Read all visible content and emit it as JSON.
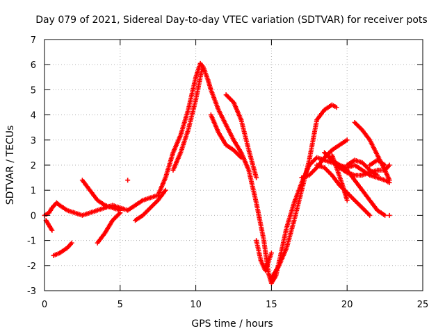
{
  "chart_data": {
    "type": "scatter",
    "title": "Day 079 of 2021, Sidereal Day-to-day VTEC variation (SDTVAR) for receiver pots",
    "xlabel": "GPS time / hours",
    "ylabel": "SDTVAR / TECUs",
    "xlim": [
      0,
      25
    ],
    "ylim": [
      -3,
      7
    ],
    "x_ticks": [
      0,
      5,
      10,
      15,
      20,
      25
    ],
    "x_tick_labels": [
      "0",
      "5",
      "10",
      "15",
      "20",
      "25"
    ],
    "y_ticks": [
      -3,
      -2,
      -1,
      0,
      1,
      2,
      3,
      4,
      5,
      6,
      7
    ],
    "y_tick_labels": [
      "-3",
      "-2",
      "-1",
      "0",
      "1",
      "2",
      "3",
      "4",
      "5",
      "6",
      "7"
    ],
    "grid": true,
    "marker": "+",
    "color": "#ff0000",
    "series": [
      {
        "name": "main",
        "x": [
          0,
          0.3,
          0.5,
          0.8,
          1.0,
          1.5,
          2.0,
          2.5,
          3.0,
          3.5,
          4.0,
          4.5,
          5.0,
          5.5,
          6.0,
          6.5,
          7.0,
          7.5,
          8.0,
          8.5,
          9.0,
          9.5,
          10.0,
          10.3,
          10.5,
          10.8,
          11.0,
          11.5,
          12.0,
          12.5,
          13.0,
          13.5,
          14.0,
          14.5,
          14.8,
          15.0,
          15.3,
          15.6,
          16.0,
          16.5,
          17.0,
          17.5,
          18.0,
          18.5,
          19.0,
          19.5,
          20.0,
          20.5,
          21.0,
          21.5,
          22.0,
          22.5,
          22.8
        ],
        "y": [
          0,
          0.1,
          0.3,
          0.5,
          0.4,
          0.2,
          0.1,
          0.0,
          0.1,
          0.2,
          0.3,
          0.4,
          0.3,
          0.2,
          0.4,
          0.6,
          0.7,
          0.8,
          1.5,
          2.5,
          3.2,
          4.2,
          5.5,
          6.05,
          5.9,
          5.4,
          5.0,
          4.2,
          3.6,
          3.0,
          2.5,
          1.8,
          0.5,
          -1.0,
          -2.3,
          -2.7,
          -2.4,
          -1.6,
          -0.5,
          0.5,
          1.3,
          2.0,
          2.3,
          2.2,
          2.1,
          2.0,
          1.9,
          2.0,
          1.8,
          1.6,
          1.5,
          1.4,
          1.3
        ]
      },
      {
        "name": "s2",
        "x": [
          0.1,
          0.3,
          0.5
        ],
        "y": [
          -0.2,
          -0.4,
          -0.6
        ]
      },
      {
        "name": "s3",
        "x": [
          0.6,
          1.0,
          1.5,
          1.8
        ],
        "y": [
          -1.6,
          -1.5,
          -1.3,
          -1.1
        ]
      },
      {
        "name": "s4",
        "x": [
          2.5,
          3.0,
          3.5,
          4.0,
          4.5,
          5.0
        ],
        "y": [
          1.4,
          1.0,
          0.6,
          0.4,
          0.3,
          0.2
        ]
      },
      {
        "name": "s5",
        "x": [
          3.5,
          4.0,
          4.5,
          5.0
        ],
        "y": [
          -1.1,
          -0.7,
          -0.2,
          0.1
        ]
      },
      {
        "name": "s6",
        "x": [
          5.5
        ],
        "y": [
          1.4
        ]
      },
      {
        "name": "s7",
        "x": [
          6.0,
          6.5,
          7.0,
          7.5,
          8.0
        ],
        "y": [
          -0.2,
          0.0,
          0.3,
          0.6,
          1.0
        ]
      },
      {
        "name": "s8",
        "x": [
          8.5,
          9.0,
          9.5,
          10.0,
          10.4
        ],
        "y": [
          1.8,
          2.5,
          3.4,
          4.6,
          5.8
        ]
      },
      {
        "name": "s9",
        "x": [
          11.0,
          11.5,
          12.0,
          12.5,
          13.0
        ],
        "y": [
          4.0,
          3.3,
          2.8,
          2.6,
          2.3
        ]
      },
      {
        "name": "s10",
        "x": [
          12.0,
          12.5,
          13.0,
          13.5,
          14.0
        ],
        "y": [
          4.8,
          4.5,
          3.8,
          2.6,
          1.5
        ]
      },
      {
        "name": "s11",
        "x": [
          14.0,
          14.3,
          14.6,
          15.0
        ],
        "y": [
          -1.0,
          -1.8,
          -2.2,
          -1.5
        ]
      },
      {
        "name": "s12",
        "x": [
          15.0,
          15.5,
          16.0,
          16.5,
          17.0,
          17.5,
          18.0,
          18.5,
          19.0,
          19.3
        ],
        "y": [
          -2.5,
          -2.0,
          -1.3,
          -0.2,
          1.0,
          2.2,
          3.8,
          4.2,
          4.4,
          4.3
        ]
      },
      {
        "name": "s13",
        "x": [
          17.0,
          17.5,
          18.0,
          18.5,
          19.0,
          19.5,
          20.0
        ],
        "y": [
          1.5,
          1.6,
          1.9,
          2.3,
          2.6,
          2.8,
          3.0
        ]
      },
      {
        "name": "s14",
        "x": [
          18.0,
          18.5,
          19.0,
          19.5,
          20.0,
          20.5,
          21.0,
          21.5
        ],
        "y": [
          2.0,
          1.9,
          1.6,
          1.2,
          0.9,
          0.6,
          0.3,
          0.0
        ]
      },
      {
        "name": "s15",
        "x": [
          18.5,
          19.0,
          19.5,
          20.0,
          20.5,
          21.0,
          21.5,
          22.0,
          22.5,
          22.8
        ],
        "y": [
          2.5,
          2.2,
          1.9,
          1.7,
          1.6,
          1.6,
          1.7,
          1.8,
          1.8,
          2.0
        ]
      },
      {
        "name": "s16",
        "x": [
          20.5,
          21.0,
          21.5,
          22.0,
          22.5,
          22.8
        ],
        "y": [
          3.7,
          3.4,
          3.0,
          2.4,
          1.8,
          1.4
        ]
      },
      {
        "name": "s17",
        "x": [
          20.0,
          20.5,
          21.0,
          21.5,
          22.0
        ],
        "y": [
          2.0,
          2.2,
          2.1,
          1.8,
          1.6
        ]
      },
      {
        "name": "s18",
        "x": [
          19.0,
          19.5,
          20.0,
          20.5,
          21.0,
          21.5,
          22.0,
          22.5
        ],
        "y": [
          2.2,
          2.0,
          1.8,
          1.4,
          1.0,
          0.6,
          0.2,
          0.0
        ]
      },
      {
        "name": "s19",
        "x": [
          19.0,
          19.3,
          19.7,
          20.0
        ],
        "y": [
          2.4,
          1.9,
          1.2,
          0.6
        ]
      },
      {
        "name": "s20",
        "x": [
          21.5,
          22.0,
          22.5
        ],
        "y": [
          2.0,
          2.2,
          2.0
        ]
      },
      {
        "name": "s21",
        "x": [
          22.8
        ],
        "y": [
          0.0
        ]
      }
    ]
  }
}
